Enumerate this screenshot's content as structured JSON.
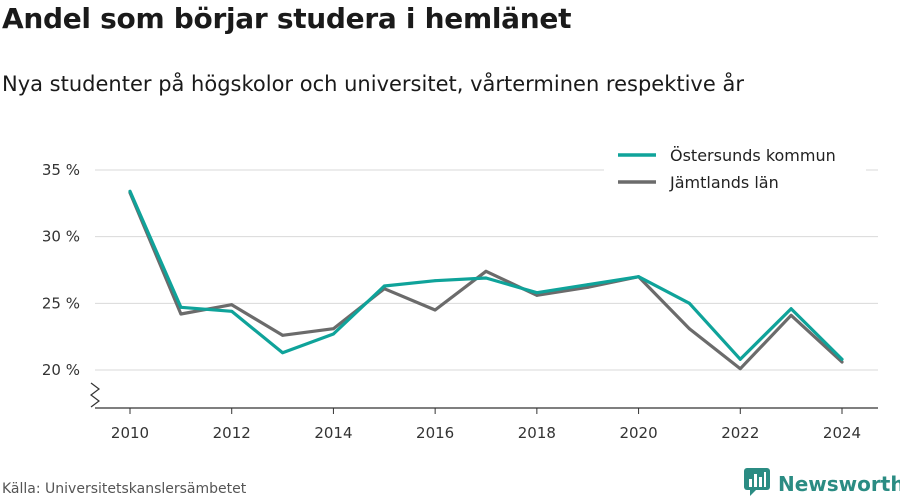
{
  "title": "Andel som börjar studera i hemlänet",
  "subtitle": "Nya studenter på högskolor och universitet, vårterminen respektive år",
  "source": "Källa: Universitetskanslersämbetet",
  "brand": {
    "name": "Newsworthy",
    "icon": "newsworthy-logo-icon",
    "color": "#2b8c83"
  },
  "chart_data": {
    "type": "line",
    "x": [
      2010,
      2011,
      2012,
      2013,
      2014,
      2015,
      2016,
      2017,
      2018,
      2019,
      2020,
      2021,
      2022,
      2023,
      2024
    ],
    "xticks": [
      2010,
      2012,
      2014,
      2016,
      2018,
      2020,
      2022,
      2024
    ],
    "xtick_labels": [
      "2010",
      "2012",
      "2014",
      "2016",
      "2018",
      "2020",
      "2022",
      "2024"
    ],
    "xlim": [
      2010,
      2024
    ],
    "yticks": [
      20,
      25,
      30,
      35
    ],
    "ytick_labels": [
      "20 %",
      "25 %",
      "30 %",
      "35 %"
    ],
    "ylim": [
      20,
      35
    ],
    "y_axis_break": true,
    "grid": true,
    "legend_position": "top-right",
    "series": [
      {
        "name": "Östersunds kommun",
        "color": "#0fa39a",
        "values": [
          33.4,
          24.7,
          24.4,
          21.3,
          22.7,
          26.3,
          26.7,
          26.9,
          25.8,
          26.4,
          27.0,
          25.0,
          20.8,
          24.6,
          20.8
        ]
      },
      {
        "name": "Jämtlands län",
        "color": "#6b6b6b",
        "values": [
          33.3,
          24.2,
          24.9,
          22.6,
          23.1,
          26.1,
          24.5,
          27.4,
          25.6,
          26.2,
          27.0,
          23.1,
          20.1,
          24.1,
          20.6
        ]
      }
    ]
  }
}
